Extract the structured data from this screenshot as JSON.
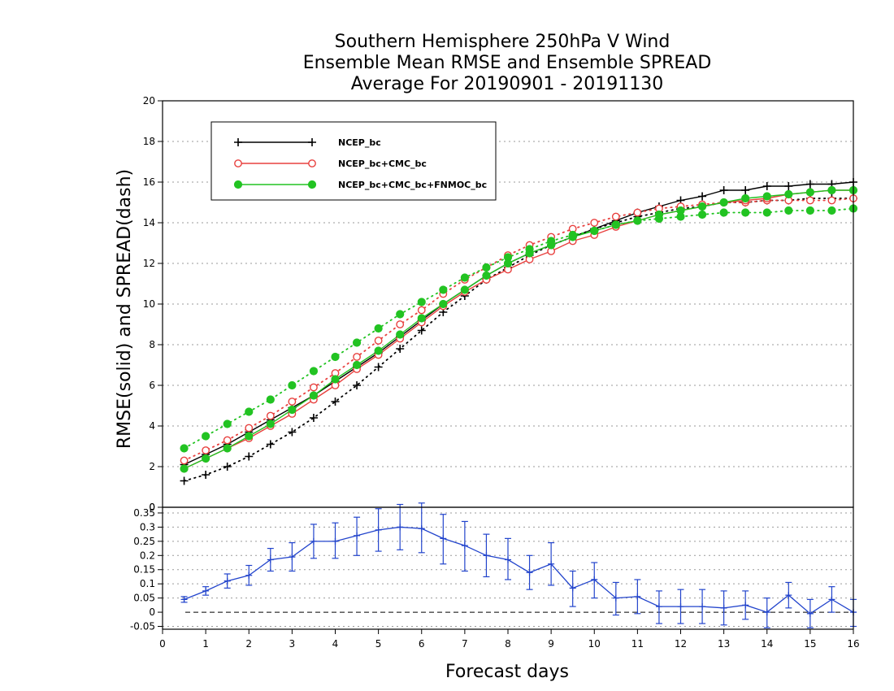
{
  "chart_data": [
    {
      "type": "line",
      "title": [
        "Southern Hemisphere 250hPa V Wind",
        "Ensemble Mean RMSE and Ensemble SPREAD",
        "Average For 20190901 - 20191130"
      ],
      "xlabel": "",
      "ylabel": "RMSE(solid) and SPREAD(dash)",
      "xlim": [
        0,
        16
      ],
      "ylim": [
        0,
        20
      ],
      "xticks": [
        0,
        1,
        2,
        3,
        4,
        5,
        6,
        7,
        8,
        9,
        10,
        11,
        12,
        13,
        14,
        15,
        16
      ],
      "yticks": [
        0,
        2,
        4,
        6,
        8,
        10,
        12,
        14,
        16,
        18,
        20
      ],
      "grid": true,
      "legend_position": "top-left",
      "x": [
        0.5,
        1,
        1.5,
        2,
        2.5,
        3,
        3.5,
        4,
        4.5,
        5,
        5.5,
        6,
        6.5,
        7,
        7.5,
        8,
        8.5,
        9,
        9.5,
        10,
        10.5,
        11,
        11.5,
        12,
        12.5,
        13,
        13.5,
        14,
        14.5,
        15,
        15.5,
        16
      ],
      "series": [
        {
          "name": "NCEP_bc",
          "color": "#000000",
          "marker": "plus",
          "rmse": [
            2.1,
            2.6,
            3.1,
            3.7,
            4.3,
            4.9,
            5.5,
            6.2,
            6.9,
            7.6,
            8.4,
            9.2,
            10.0,
            10.7,
            11.4,
            12.0,
            12.5,
            12.9,
            13.3,
            13.7,
            14.1,
            14.5,
            14.8,
            15.1,
            15.3,
            15.6,
            15.6,
            15.8,
            15.8,
            15.9,
            15.9,
            16.0
          ],
          "spread": [
            1.3,
            1.6,
            2.0,
            2.5,
            3.1,
            3.7,
            4.4,
            5.2,
            6.0,
            6.9,
            7.8,
            8.7,
            9.6,
            10.4,
            11.2,
            11.8,
            12.4,
            12.9,
            13.3,
            13.7,
            14.0,
            14.3,
            14.5,
            14.7,
            14.8,
            15.0,
            15.0,
            15.1,
            15.1,
            15.2,
            15.2,
            15.2
          ]
        },
        {
          "name": "NCEP_bc+CMC_bc",
          "color": "#e8403e",
          "marker": "circle-open",
          "rmse": [
            1.9,
            2.4,
            2.9,
            3.4,
            4.0,
            4.6,
            5.3,
            6.0,
            6.8,
            7.5,
            8.3,
            9.1,
            9.9,
            10.6,
            11.2,
            11.7,
            12.2,
            12.6,
            13.1,
            13.4,
            13.8,
            14.1,
            14.4,
            14.6,
            14.8,
            15.0,
            15.1,
            15.2,
            15.4,
            15.5,
            15.6,
            15.6
          ],
          "spread": [
            2.3,
            2.8,
            3.3,
            3.9,
            4.5,
            5.2,
            5.9,
            6.6,
            7.4,
            8.2,
            9.0,
            9.7,
            10.5,
            11.2,
            11.8,
            12.4,
            12.9,
            13.3,
            13.7,
            14.0,
            14.3,
            14.5,
            14.7,
            14.8,
            14.9,
            15.0,
            15.0,
            15.1,
            15.1,
            15.1,
            15.1,
            15.2
          ]
        },
        {
          "name": "NCEP_bc+CMC_bc+FNMOC_bc",
          "color": "#22c322",
          "marker": "circle-filled",
          "rmse": [
            1.9,
            2.4,
            2.9,
            3.5,
            4.1,
            4.8,
            5.5,
            6.3,
            7.0,
            7.7,
            8.5,
            9.3,
            10.0,
            10.7,
            11.4,
            12.0,
            12.5,
            12.9,
            13.3,
            13.6,
            13.9,
            14.1,
            14.4,
            14.6,
            14.8,
            15.0,
            15.2,
            15.3,
            15.4,
            15.5,
            15.6,
            15.6
          ],
          "spread": [
            2.9,
            3.5,
            4.1,
            4.7,
            5.3,
            6.0,
            6.7,
            7.4,
            8.1,
            8.8,
            9.5,
            10.1,
            10.7,
            11.3,
            11.8,
            12.3,
            12.7,
            13.1,
            13.4,
            13.6,
            13.9,
            14.1,
            14.2,
            14.3,
            14.4,
            14.5,
            14.5,
            14.5,
            14.6,
            14.6,
            14.6,
            14.7
          ]
        }
      ]
    },
    {
      "type": "line",
      "title": "",
      "xlabel": "Forecast days",
      "ylabel": "",
      "xlim": [
        0,
        16
      ],
      "ylim": [
        -0.06,
        0.37
      ],
      "xticks": [
        0,
        1,
        2,
        3,
        4,
        5,
        6,
        7,
        8,
        9,
        10,
        11,
        12,
        13,
        14,
        15,
        16
      ],
      "yticks": [
        -0.05,
        0,
        0.05,
        0.1,
        0.15,
        0.2,
        0.25,
        0.3,
        0.35
      ],
      "ytick_labels": [
        "-0.05",
        "0",
        "0.05",
        "0.1",
        "0.15",
        "0.2",
        "0.25",
        "0.3",
        "0.35"
      ],
      "top_label": "0",
      "grid": true,
      "reference_line": 0,
      "color": "#2244cc",
      "x": [
        0.5,
        1,
        1.5,
        2,
        2.5,
        3,
        3.5,
        4,
        4.5,
        5,
        5.5,
        6,
        6.5,
        7,
        7.5,
        8,
        8.5,
        9,
        9.5,
        10,
        10.5,
        11,
        11.5,
        12,
        12.5,
        13,
        13.5,
        14,
        14.5,
        15,
        15.5,
        16
      ],
      "values": [
        0.045,
        0.075,
        0.11,
        0.13,
        0.185,
        0.195,
        0.25,
        0.25,
        0.27,
        0.29,
        0.3,
        0.295,
        0.26,
        0.235,
        0.2,
        0.185,
        0.14,
        0.17,
        0.085,
        0.115,
        0.05,
        0.055,
        0.02,
        0.02,
        0.02,
        0.015,
        0.025,
        0.0,
        0.06,
        -0.005,
        0.045,
        0.0
      ],
      "error_low": [
        0.035,
        0.06,
        0.085,
        0.095,
        0.145,
        0.145,
        0.19,
        0.19,
        0.2,
        0.215,
        0.22,
        0.21,
        0.17,
        0.145,
        0.125,
        0.115,
        0.08,
        0.095,
        0.02,
        0.05,
        -0.01,
        -0.005,
        -0.04,
        -0.04,
        -0.04,
        -0.045,
        -0.025,
        -0.055,
        0.015,
        -0.055,
        0.0,
        -0.05
      ],
      "error_high": [
        0.055,
        0.09,
        0.135,
        0.165,
        0.225,
        0.245,
        0.31,
        0.315,
        0.335,
        0.365,
        0.38,
        0.385,
        0.345,
        0.32,
        0.275,
        0.26,
        0.2,
        0.245,
        0.145,
        0.175,
        0.105,
        0.115,
        0.075,
        0.08,
        0.08,
        0.075,
        0.075,
        0.05,
        0.105,
        0.045,
        0.09,
        0.045
      ]
    }
  ]
}
